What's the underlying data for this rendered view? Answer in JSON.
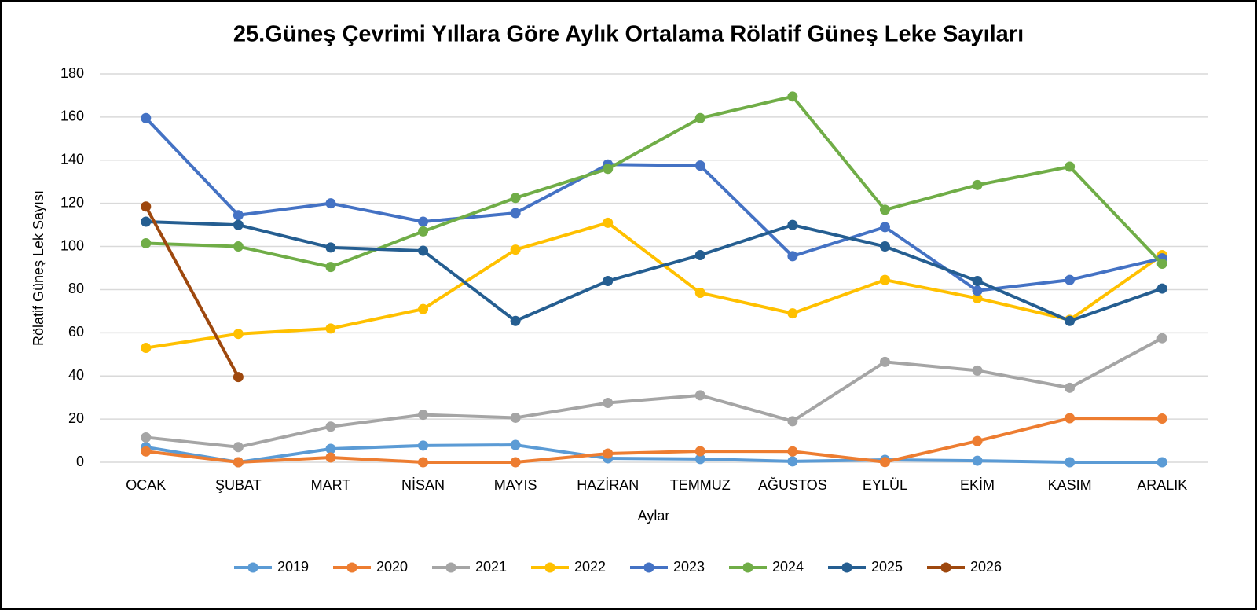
{
  "chart_data": {
    "type": "line",
    "title": "25.Güneş Çevrimi Yıllara Göre Aylık Ortalama Rölatif Güneş Leke Sayıları",
    "x_label": "Aylar",
    "y_label": "Rölatif Güneş Lek Sayısı",
    "categories": [
      "OCAK",
      "ŞUBAT",
      "MART",
      "NİSAN",
      "MAYIS",
      "HAZİRAN",
      "TEMMUZ",
      "AĞUSTOS",
      "EYLÜL",
      "EKİM",
      "KASIM",
      "ARALIK"
    ],
    "ylim": [
      0,
      180
    ],
    "yticks": [
      0,
      20,
      40,
      60,
      80,
      100,
      120,
      140,
      160,
      180
    ],
    "grid": true,
    "legend": "bottom",
    "series": [
      {
        "name": "2019",
        "color": "#5b9bd5",
        "values": [
          7,
          0,
          6.2,
          7.7,
          8,
          1.8,
          1.5,
          0.4,
          1.1,
          0.7,
          0,
          0
        ]
      },
      {
        "name": "2020",
        "color": "#ed7d31",
        "values": [
          5,
          0,
          2.2,
          0,
          0,
          4,
          5.1,
          5,
          0.1,
          9.8,
          20.4,
          20.2
        ]
      },
      {
        "name": "2021",
        "color": "#a5a5a5",
        "values": [
          11.5,
          7,
          16.5,
          22,
          20.6,
          27.5,
          31,
          19,
          46.5,
          42.5,
          34.5,
          57.5
        ]
      },
      {
        "name": "2022",
        "color": "#ffc000",
        "values": [
          53,
          59.5,
          62,
          71,
          98.5,
          111,
          78.5,
          69,
          84.5,
          76,
          66,
          96
        ]
      },
      {
        "name": "2023",
        "color": "#4472c4",
        "values": [
          159.5,
          114.5,
          120,
          111.5,
          115.5,
          138,
          137.5,
          95.5,
          109,
          79.5,
          84.5,
          94.5
        ]
      },
      {
        "name": "2024",
        "color": "#70ad47",
        "values": [
          101.5,
          100,
          90.5,
          107,
          122.5,
          136,
          159.5,
          169.5,
          117,
          128.5,
          137,
          92
        ]
      },
      {
        "name": "2025",
        "color": "#255e91",
        "values": [
          111.5,
          110,
          99.5,
          98,
          65.5,
          84,
          96,
          110,
          100,
          84,
          65.5,
          80.5
        ]
      },
      {
        "name": "2026",
        "color": "#9e480e",
        "values": [
          118.5,
          39.5,
          null,
          null,
          null,
          null,
          null,
          null,
          null,
          null,
          null,
          null
        ]
      }
    ]
  }
}
